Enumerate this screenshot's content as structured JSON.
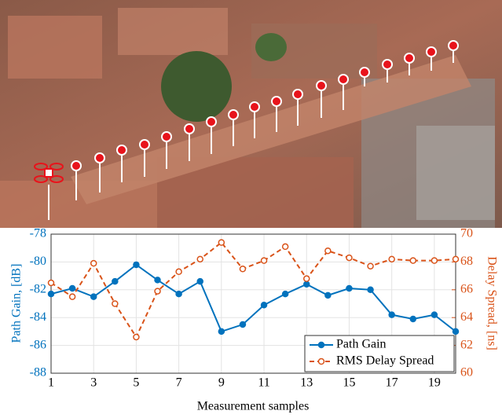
{
  "chart_data": {
    "type": "line",
    "xlabel": "Measurement samples",
    "ylabel": "Path Gain, [dB]",
    "y2label": "Delay Spread, [ns]",
    "x": [
      1,
      2,
      3,
      4,
      5,
      6,
      7,
      8,
      9,
      10,
      11,
      12,
      13,
      14,
      15,
      16,
      17,
      18,
      19,
      20
    ],
    "xlim": [
      1,
      20
    ],
    "xticks": [
      1,
      3,
      5,
      7,
      9,
      11,
      13,
      15,
      17,
      19
    ],
    "ylim": [
      -88,
      -78
    ],
    "yticks": [
      -88,
      -86,
      -84,
      -82,
      -80,
      -78
    ],
    "y2lim": [
      60,
      70
    ],
    "y2ticks": [
      60,
      62,
      64,
      66,
      68,
      70
    ],
    "grid": true,
    "legend": "lower right",
    "series": [
      {
        "name": "Path Gain",
        "color": "#0072bd",
        "dashed": false,
        "marker": "filled",
        "values": [
          -82.3,
          -81.9,
          -82.5,
          -81.4,
          -80.2,
          -81.3,
          -82.3,
          -81.4,
          -85.0,
          -84.5,
          -83.1,
          -82.3,
          -81.6,
          -82.4,
          -81.9,
          -82.0,
          -83.8,
          -84.1,
          -83.8,
          -85.0
        ]
      },
      {
        "name": "RMS Delay Spread",
        "color": "#d95319",
        "dashed": true,
        "marker": "open",
        "axis": "y2",
        "values": [
          66.5,
          65.5,
          67.9,
          65.0,
          62.6,
          65.9,
          67.3,
          68.2,
          69.4,
          67.5,
          68.1,
          69.1,
          66.8,
          68.8,
          68.3,
          67.7,
          68.2,
          68.1,
          68.1,
          68.2
        ]
      }
    ]
  }
}
